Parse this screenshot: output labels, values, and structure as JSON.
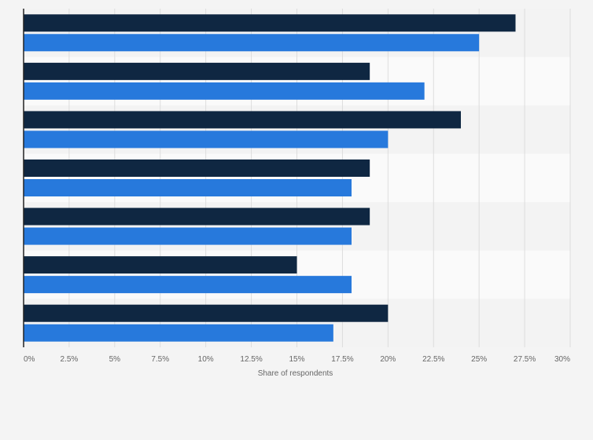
{
  "chart_data": {
    "type": "bar",
    "orientation": "horizontal",
    "categories": [
      "",
      "",
      "",
      "",
      "",
      "",
      ""
    ],
    "series": [
      {
        "values": [
          27,
          19,
          24,
          19,
          19,
          15,
          20
        ],
        "color": "#0f2742"
      },
      {
        "values": [
          25,
          22,
          20,
          18,
          18,
          18,
          17
        ],
        "color": "#2779dc"
      }
    ],
    "x_ticks": [
      "0%",
      "2.5%",
      "5%",
      "7.5%",
      "10%",
      "12.5%",
      "15%",
      "17.5%",
      "20%",
      "22.5%",
      "25%",
      "27.5%",
      "30%"
    ],
    "xlim": [
      0,
      30
    ],
    "xlabel": "Share of respondents",
    "ylabel": "",
    "title": "",
    "grid": true,
    "legend": "none",
    "colors": {
      "background": "#f4f4f4",
      "band_light": "#fafafa",
      "band_dark": "#f3f3f3",
      "grid": "#dddddd",
      "axis": "#222222",
      "text": "#666666"
    }
  }
}
